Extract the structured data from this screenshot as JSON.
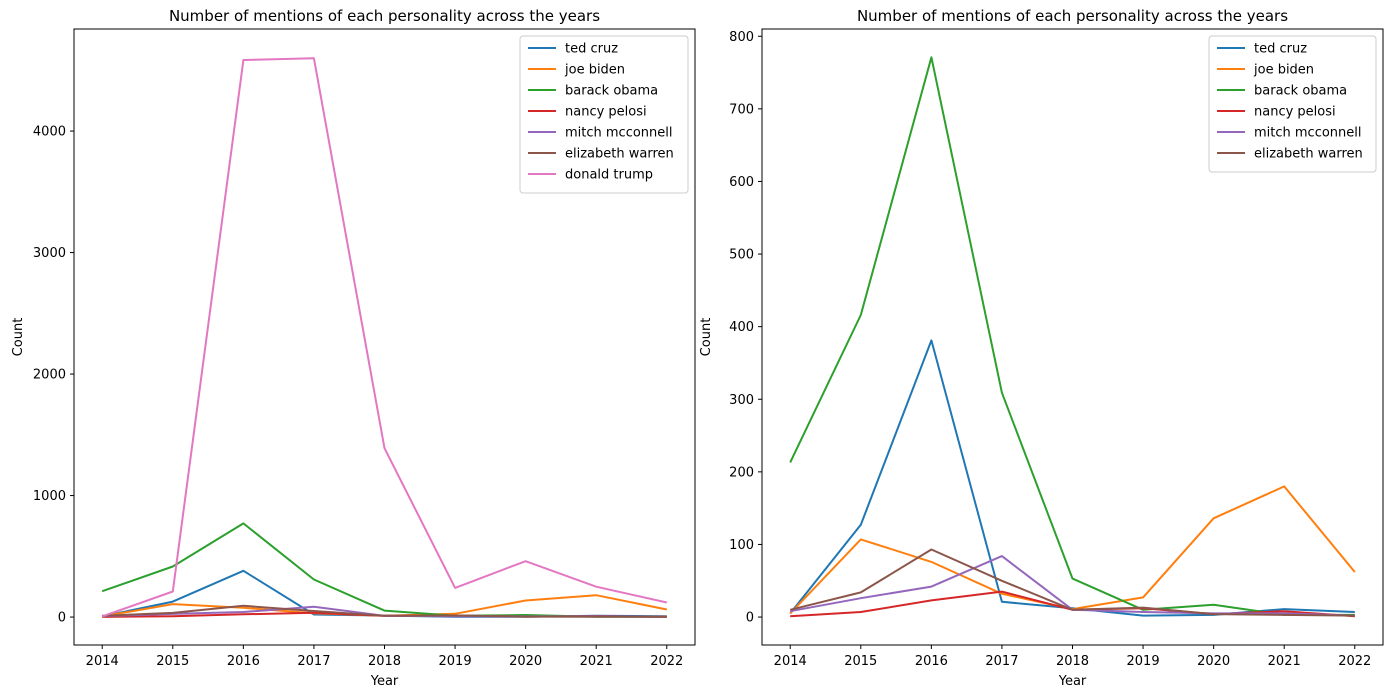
{
  "chart_data": [
    {
      "type": "line",
      "title": "Number of mentions of each personality across the years",
      "xlabel": "Year",
      "ylabel": "Count",
      "x": [
        2014,
        2015,
        2016,
        2017,
        2018,
        2019,
        2020,
        2021,
        2022
      ],
      "xlim": [
        2013.6,
        2022.4
      ],
      "ylim": [
        -230,
        4840
      ],
      "yticks": [
        0,
        1000,
        2000,
        3000,
        4000
      ],
      "legend": "top-right",
      "series": [
        {
          "name": "ted cruz",
          "color": "#1f77b4",
          "values": [
            5,
            127,
            381,
            21,
            12,
            2,
            3,
            11,
            7
          ]
        },
        {
          "name": "joe biden",
          "color": "#ff7f0e",
          "values": [
            5,
            107,
            76,
            32,
            11,
            27,
            136,
            180,
            62
          ]
        },
        {
          "name": "barack obama",
          "color": "#2ca02c",
          "values": [
            213,
            416,
            771,
            309,
            53,
            10,
            17,
            3,
            3
          ]
        },
        {
          "name": "nancy pelosi",
          "color": "#d62728",
          "values": [
            1,
            7,
            23,
            35,
            10,
            12,
            4,
            8,
            1
          ]
        },
        {
          "name": "mitch mcconnell",
          "color": "#9467bd",
          "values": [
            8,
            26,
            42,
            84,
            10,
            7,
            5,
            5,
            2
          ]
        },
        {
          "name": "elizabeth warren",
          "color": "#8c564b",
          "values": [
            10,
            34,
            93,
            50,
            10,
            13,
            4,
            3,
            2
          ]
        },
        {
          "name": "donald trump",
          "color": "#e377c2",
          "values": [
            5,
            210,
            4585,
            4600,
            1390,
            240,
            460,
            250,
            120
          ]
        }
      ]
    },
    {
      "type": "line",
      "title": "Number of mentions of each personality across the years",
      "xlabel": "Year",
      "ylabel": "Count",
      "x": [
        2014,
        2015,
        2016,
        2017,
        2018,
        2019,
        2020,
        2021,
        2022
      ],
      "xlim": [
        2013.6,
        2022.4
      ],
      "ylim": [
        -38.5,
        810
      ],
      "yticks": [
        0,
        100,
        200,
        300,
        400,
        500,
        600,
        700,
        800
      ],
      "legend": "top-right",
      "series": [
        {
          "name": "ted cruz",
          "color": "#1f77b4",
          "values": [
            5,
            127,
            381,
            21,
            12,
            2,
            3,
            11,
            7
          ]
        },
        {
          "name": "joe biden",
          "color": "#ff7f0e",
          "values": [
            5,
            107,
            76,
            32,
            11,
            27,
            136,
            180,
            62
          ]
        },
        {
          "name": "barack obama",
          "color": "#2ca02c",
          "values": [
            213,
            416,
            771,
            309,
            53,
            10,
            17,
            3,
            3
          ]
        },
        {
          "name": "nancy pelosi",
          "color": "#d62728",
          "values": [
            1,
            7,
            23,
            35,
            10,
            12,
            4,
            8,
            1
          ]
        },
        {
          "name": "mitch mcconnell",
          "color": "#9467bd",
          "values": [
            8,
            26,
            42,
            84,
            10,
            7,
            5,
            5,
            2
          ]
        },
        {
          "name": "elizabeth warren",
          "color": "#8c564b",
          "values": [
            10,
            34,
            93,
            50,
            10,
            13,
            4,
            3,
            2
          ]
        }
      ]
    }
  ]
}
